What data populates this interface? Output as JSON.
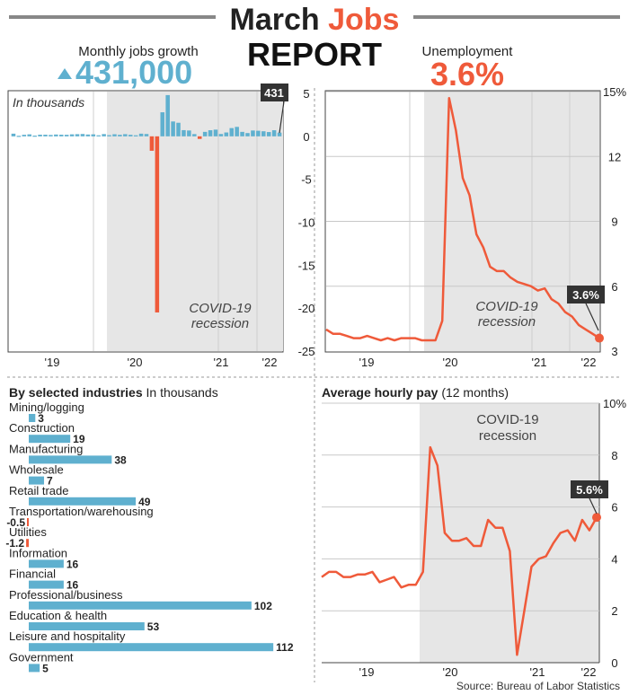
{
  "header": {
    "title_part1": "March",
    "title_part2": "Jobs",
    "title_line2": "REPORT",
    "left_label": "Monthly jobs growth",
    "left_value": "431,000",
    "right_label": "Unemployment",
    "right_value": "3.6%"
  },
  "colors": {
    "blue": "#5fb0cf",
    "red": "#ef5a3a",
    "recession": "#e6e6e6",
    "dark": "#333333",
    "text": "#222222"
  },
  "recession_label": [
    "COVID-19",
    "recession"
  ],
  "source": "Source: Bureau of Labor Statistics",
  "chart_data": [
    {
      "id": "jobs",
      "type": "bar",
      "note": "In thousands",
      "x_ticks": [
        "'19",
        "'20",
        "'21",
        "'22"
      ],
      "y_ticks": [
        "5",
        "0",
        "-5",
        "-10",
        "-15",
        "-20",
        "-25"
      ],
      "ylim": [
        -25,
        5
      ],
      "callout": "431",
      "recession_shaded": true,
      "values": [
        0.31,
        0.06,
        0.18,
        0.23,
        0.08,
        0.19,
        0.19,
        0.16,
        0.21,
        0.19,
        0.18,
        0.23,
        0.25,
        0.27,
        0.21,
        0.23,
        0.12,
        0.26,
        0.14,
        0.24,
        0.18,
        0.25,
        0.18,
        0.12,
        0.31,
        0.27,
        -1.68,
        -20.5,
        2.8,
        4.8,
        1.73,
        1.58,
        0.72,
        0.68,
        0.26,
        -0.3,
        0.52,
        0.71,
        0.78,
        0.27,
        0.45,
        0.96,
        1.1,
        0.52,
        0.38,
        0.68,
        0.65,
        0.59,
        0.5,
        0.71,
        0.43
      ]
    },
    {
      "id": "unemployment",
      "type": "line",
      "x_ticks": [
        "'19",
        "'20",
        "'21",
        "'22"
      ],
      "y_ticks": [
        "15%",
        "12",
        "9",
        "6",
        "3"
      ],
      "ylim": [
        3,
        15
      ],
      "callout": "3.6%",
      "recession_shaded": true,
      "values": [
        4.0,
        3.8,
        3.8,
        3.7,
        3.6,
        3.6,
        3.7,
        3.6,
        3.5,
        3.6,
        3.5,
        3.6,
        3.6,
        3.6,
        3.5,
        3.5,
        3.5,
        4.4,
        14.7,
        13.2,
        11.0,
        10.2,
        8.4,
        7.8,
        6.9,
        6.7,
        6.7,
        6.4,
        6.2,
        6.1,
        6.0,
        5.8,
        5.9,
        5.4,
        5.2,
        4.8,
        4.6,
        4.2,
        4.0,
        3.8,
        3.6
      ]
    },
    {
      "id": "industries",
      "type": "bar",
      "title": "By selected industries",
      "subtitle": "In thousands",
      "categories": [
        "Mining/logging",
        "Construction",
        "Manufacturing",
        "Wholesale",
        "Retail trade",
        "Transportation/warehousing",
        "Utilities",
        "Information",
        "Financial",
        "Professional/business",
        "Education & health",
        "Leisure and hospitality",
        "Government"
      ],
      "values": [
        3,
        19,
        38,
        7,
        49,
        -0.5,
        -1.2,
        16,
        16,
        102,
        53,
        112,
        5
      ],
      "labels": [
        "3",
        "19",
        "38",
        "7",
        "49",
        "-0.5",
        "-1.2",
        "16",
        "16",
        "102",
        "53",
        "112",
        "5"
      ]
    },
    {
      "id": "hourly_pay",
      "type": "line",
      "title": "Average hourly pay",
      "subtitle": "(12 months)",
      "x_ticks": [
        "'19",
        "'20",
        "'21",
        "'22"
      ],
      "y_ticks": [
        "10%",
        "8",
        "6",
        "4",
        "2",
        "0"
      ],
      "ylim": [
        0,
        10
      ],
      "callout": "5.6%",
      "recession_shaded": true,
      "values": [
        3.3,
        3.5,
        3.5,
        3.3,
        3.3,
        3.4,
        3.4,
        3.5,
        3.1,
        3.2,
        3.3,
        2.9,
        3.0,
        3.0,
        3.5,
        8.3,
        7.6,
        5.0,
        4.7,
        4.7,
        4.8,
        4.5,
        4.5,
        5.5,
        5.2,
        5.2,
        4.3,
        0.3,
        2.0,
        3.7,
        4.0,
        4.1,
        4.6,
        5.0,
        5.1,
        4.7,
        5.5,
        5.1,
        5.6
      ]
    }
  ]
}
